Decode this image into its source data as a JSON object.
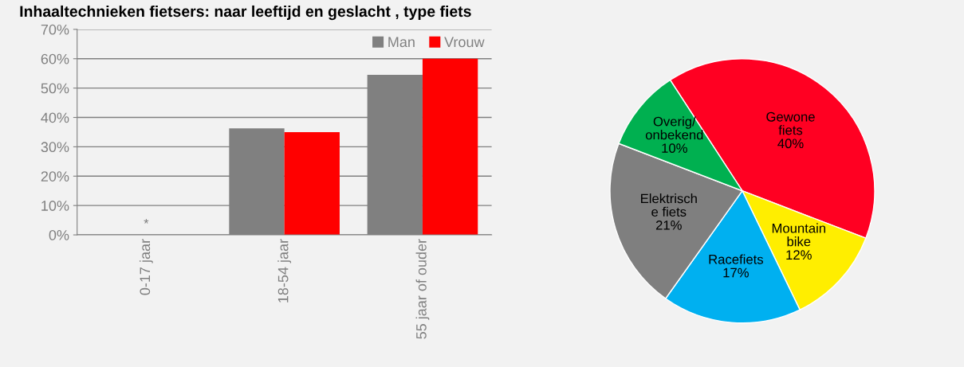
{
  "chart_data": [
    {
      "type": "bar",
      "title": "Inhaaltechnieken fietsers: naar leeftijd en geslacht , type fiets",
      "categories": [
        "0-17 jaar",
        "18-54 jaar",
        "55 jaar of ouder"
      ],
      "series": [
        {
          "name": "Man",
          "color": "#808080",
          "values": [
            null,
            36.3,
            54.5
          ]
        },
        {
          "name": "Vrouw",
          "color": "#ff0000",
          "values": [
            null,
            35,
            60
          ]
        }
      ],
      "ylim": [
        0,
        70
      ],
      "yticks": [
        {
          "value": 0,
          "label": "0%"
        },
        {
          "value": 10,
          "label": "10%"
        },
        {
          "value": 20,
          "label": "20%"
        },
        {
          "value": 30,
          "label": "30%"
        },
        {
          "value": 40,
          "label": "40%"
        },
        {
          "value": 50,
          "label": "50%"
        },
        {
          "value": 60,
          "label": "60%"
        },
        {
          "value": 70,
          "label": "70%"
        }
      ],
      "grid": "y",
      "legend": "top right",
      "annotations": [
        "*"
      ]
    },
    {
      "type": "pie",
      "categories": [
        "Gewone\nfiets",
        "Mountain\nbike",
        "Racefiets",
        "Elektrisch\ne fiets",
        "Overig/\nonbekend"
      ],
      "values": [
        40,
        12,
        17,
        21,
        10
      ],
      "colors": [
        "#ff0022",
        "#ffee00",
        "#00b0f0",
        "#7f7f7f",
        "#00b050"
      ],
      "value_labels": [
        "40%",
        "12%",
        "17%",
        "21%",
        "10%"
      ]
    }
  ]
}
